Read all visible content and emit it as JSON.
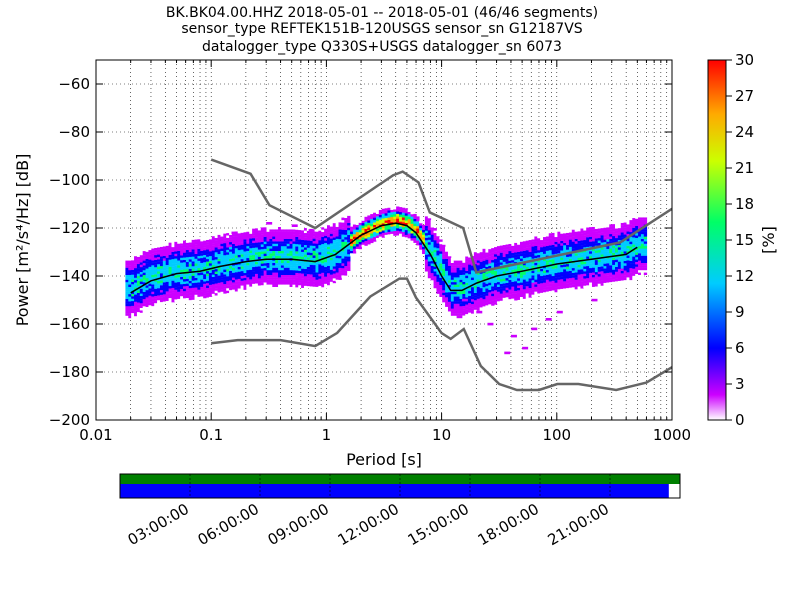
{
  "chart_data": {
    "type": "heatmap",
    "title": "BK.BK04.00.HHZ   2018-05-01 -- 2018-05-01  (46/46 segments)",
    "subtitle_lines": [
      "sensor_type REFTEK151B-120USGS sensor_sn G12187VS",
      "datalogger_type Q330S+USGS datalogger_sn 6073"
    ],
    "xlabel": "Period [s]",
    "ylabel": "Power [m²/s⁴/Hz] [dB]",
    "xscale": "log",
    "xlim": [
      0.01,
      1000
    ],
    "ylim": [
      -200,
      -50
    ],
    "x_ticks": [
      {
        "v": 0.01,
        "label": "0.01"
      },
      {
        "v": 0.1,
        "label": "0.1"
      },
      {
        "v": 1,
        "label": "1"
      },
      {
        "v": 10,
        "label": "10"
      },
      {
        "v": 100,
        "label": "100"
      },
      {
        "v": 1000,
        "label": "1000"
      }
    ],
    "y_ticks": [
      {
        "v": -60,
        "label": "−60"
      },
      {
        "v": -80,
        "label": "−80"
      },
      {
        "v": -100,
        "label": "−100"
      },
      {
        "v": -120,
        "label": "−120"
      },
      {
        "v": -140,
        "label": "−140"
      },
      {
        "v": -160,
        "label": "−160"
      },
      {
        "v": -180,
        "label": "−180"
      },
      {
        "v": -200,
        "label": "−200"
      }
    ],
    "grid": true,
    "colorbar": {
      "label": "[%]",
      "range": [
        0,
        30
      ],
      "ticks": [
        "0",
        "3",
        "6",
        "9",
        "12",
        "15",
        "18",
        "21",
        "24",
        "27",
        "30"
      ],
      "colormap": [
        "#ffffff",
        "#cc00ff",
        "#0000ff",
        "#00ccff",
        "#00ff66",
        "#ccff00",
        "#ffaa00",
        "#ff0000"
      ]
    },
    "high_noise_model": {
      "x": [
        0.1,
        0.22,
        0.32,
        0.8,
        3.8,
        4.6,
        6.3,
        7.9,
        15.4,
        20,
        354.8,
        1000
      ],
      "y": [
        -91.5,
        -97.4,
        -110.5,
        -120,
        -98,
        -96.5,
        -101,
        -113.5,
        -120,
        -138.5,
        -126,
        -112
      ]
    },
    "low_noise_model": {
      "x": [
        0.1,
        0.17,
        0.4,
        0.8,
        1.24,
        2.4,
        4.3,
        5,
        6,
        10,
        12,
        15.6,
        21.9,
        31.6,
        45,
        70,
        101,
        154,
        328,
        600,
        1000
      ],
      "y": [
        -168,
        -166.7,
        -166.7,
        -169.2,
        -163.7,
        -148.6,
        -141.1,
        -141.1,
        -149,
        -163.8,
        -166.2,
        -162.1,
        -177.5,
        -185,
        -187.5,
        -187.5,
        -185,
        -185,
        -187.5,
        -184.4,
        -178
      ]
    },
    "mode_curve": {
      "x": [
        0.02,
        0.03,
        0.05,
        0.08,
        0.12,
        0.2,
        0.3,
        0.5,
        0.8,
        1.2,
        2,
        3,
        4,
        5,
        6,
        8,
        10,
        12,
        15,
        20,
        30,
        50,
        100,
        200,
        400,
        500
      ],
      "y": [
        -145,
        -140,
        -138,
        -137,
        -135,
        -133,
        -132,
        -132,
        -133,
        -130,
        -122,
        -118,
        -117,
        -118,
        -121,
        -130,
        -139,
        -145,
        -145,
        -142,
        -139,
        -137,
        -134,
        -132,
        -130,
        -127
      ]
    },
    "mean_curve": {
      "x": [
        0.02,
        0.03,
        0.05,
        0.08,
        0.12,
        0.2,
        0.3,
        0.5,
        0.8,
        1.2,
        2,
        3,
        4,
        5,
        6,
        8,
        10,
        12,
        15,
        20,
        30,
        50,
        100,
        200,
        400,
        500
      ],
      "y": [
        -147,
        -142,
        -139,
        -138,
        -136,
        -134,
        -133,
        -133,
        -134,
        -131,
        -123,
        -119,
        -118,
        -119,
        -122,
        -131,
        -140,
        -146,
        -146,
        -143,
        -140,
        -138,
        -135,
        -133,
        -131,
        -128
      ]
    }
  },
  "timeline": {
    "labels": [
      "03:00:00",
      "06:00:00",
      "09:00:00",
      "12:00:00",
      "15:00:00",
      "18:00:00",
      "21:00:00"
    ],
    "coverage_fraction": 0.98,
    "top_color": "#008000",
    "bottom_color": "#0000ff"
  }
}
